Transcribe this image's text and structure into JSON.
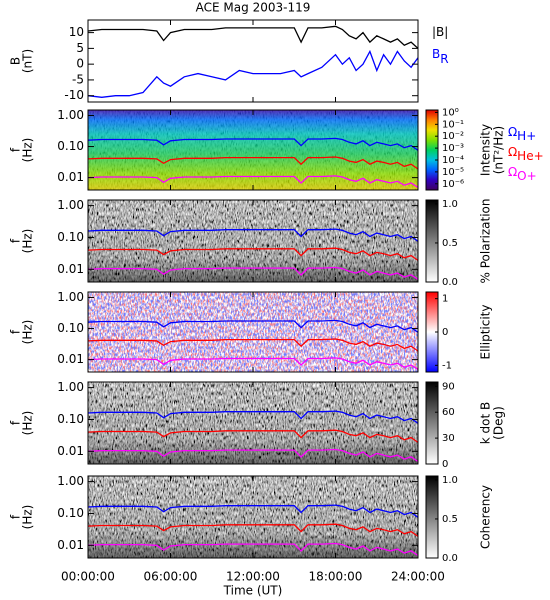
{
  "time_axis": {
    "label": "Time (UT)",
    "lim": [
      0,
      24
    ],
    "ticks": [
      {
        "value": 0,
        "label": "00:00:00"
      },
      {
        "value": 6,
        "label": "06:00:00"
      },
      {
        "value": 12,
        "label": "12:00:00"
      },
      {
        "value": 18,
        "label": "18:00:00"
      },
      {
        "value": 24,
        "label": "24:00:00"
      }
    ]
  },
  "cyclotron": {
    "series": [
      {
        "name": "Ω",
        "subscript": "H+",
        "color": "#0000ff",
        "values": [
          0.16,
          0.168,
          0.168,
          0.168,
          0.168,
          0.16,
          0.114,
          0.153,
          0.168,
          0.168,
          0.168,
          0.175,
          0.175,
          0.175,
          0.175,
          0.175,
          0.175,
          0.107,
          0.175,
          0.175,
          0.183,
          0.168,
          0.137,
          0.122,
          0.153,
          0.107,
          0.137,
          0.122,
          0.107,
          0.122,
          0.092,
          0.107,
          0.076
        ]
      },
      {
        "name": "Ω",
        "subscript": "He+",
        "color": "#ff0000",
        "values": [
          0.04,
          0.042,
          0.042,
          0.042,
          0.042,
          0.04,
          0.029,
          0.038,
          0.042,
          0.042,
          0.042,
          0.044,
          0.044,
          0.044,
          0.044,
          0.044,
          0.044,
          0.027,
          0.044,
          0.044,
          0.046,
          0.042,
          0.034,
          0.031,
          0.038,
          0.027,
          0.034,
          0.031,
          0.027,
          0.031,
          0.023,
          0.027,
          0.019
        ]
      },
      {
        "name": "Ω",
        "subscript": "O+",
        "color": "#ff00ff",
        "values": [
          0.01,
          0.0105,
          0.0105,
          0.0105,
          0.0105,
          0.01,
          0.0071,
          0.0095,
          0.0105,
          0.0105,
          0.0105,
          0.0109,
          0.0109,
          0.0109,
          0.0109,
          0.0109,
          0.0109,
          0.0067,
          0.0109,
          0.0109,
          0.0114,
          0.0105,
          0.0086,
          0.0076,
          0.0095,
          0.0067,
          0.0086,
          0.0076,
          0.0067,
          0.0076,
          0.0057,
          0.0067,
          0.0048
        ]
      }
    ]
  },
  "chart_data": [
    {
      "type": "line",
      "title": "ACE Mag 2003-119",
      "ylabel": [
        "B",
        "(nT)"
      ],
      "ylim": [
        -12,
        14
      ],
      "yticks": [
        -10,
        -5,
        0,
        5,
        10
      ],
      "x": [
        0,
        1,
        2,
        3,
        4,
        5,
        5.5,
        6,
        7,
        8,
        9,
        10,
        11,
        12,
        13,
        14,
        15,
        15.5,
        16,
        17,
        18,
        18.5,
        19,
        19.5,
        20,
        20.5,
        21,
        21.5,
        22,
        22.5,
        23,
        23.5,
        24
      ],
      "series": [
        {
          "name": "|B|",
          "color": "#000000",
          "values": [
            10.5,
            11,
            11,
            11,
            11,
            10.5,
            7.5,
            10,
            11,
            11,
            11,
            11.5,
            11.5,
            11.5,
            11.5,
            11.5,
            11.5,
            7,
            11.5,
            11.5,
            12,
            11,
            9,
            8,
            10,
            7,
            9,
            8,
            7,
            8,
            6,
            7,
            5
          ]
        },
        {
          "name": "B",
          "subscript": "R",
          "color": "#0000ff",
          "values": [
            -10,
            -10.5,
            -10,
            -10,
            -9,
            -4,
            -6,
            -7,
            -4,
            -3,
            -4,
            -5,
            -2,
            -3,
            -3,
            -3,
            -2,
            -4,
            -3,
            -1,
            3,
            0,
            2,
            -2,
            0,
            4,
            -2,
            3,
            0,
            4,
            1,
            -1,
            2
          ]
        }
      ]
    },
    {
      "type": "spectrogram",
      "ylabel": [
        "f",
        "(Hz)"
      ],
      "log": true,
      "ylim": [
        0.004,
        1.5
      ],
      "yticks": [
        {
          "value": 1,
          "label": "1.00"
        },
        {
          "value": 0.1,
          "label": "0.10"
        },
        0.01
      ],
      "colorbar": {
        "title": [
          "Intensity",
          "(nT²/Hz)"
        ],
        "log": true,
        "lim": [
          3e-07,
          1.6
        ],
        "ticks": [
          {
            "value": 1,
            "label": "10⁰"
          },
          {
            "value": 0.1,
            "label": "10⁻¹"
          },
          {
            "value": 0.01,
            "label": "10⁻²"
          },
          {
            "value": 0.001,
            "label": "10⁻³"
          },
          {
            "value": 0.0001,
            "label": "10⁻⁴"
          },
          {
            "value": 1e-05,
            "label": "10⁻⁵"
          },
          {
            "value": 1e-06,
            "label": "10⁻⁶"
          }
        ],
        "colors": [
          "#400060",
          "#3000c0",
          "#0060ff",
          "#00c0e0",
          "#00d060",
          "#80e000",
          "#f0e000",
          "#ff8000",
          "#e00000"
        ]
      }
    },
    {
      "type": "spectrogram",
      "ylabel": [
        "f",
        "(Hz)"
      ],
      "log": true,
      "ylim": [
        0.004,
        1.5
      ],
      "yticks": [
        {
          "value": 1,
          "label": "1.00"
        },
        {
          "value": 0.1,
          "label": "0.10"
        },
        0.01
      ],
      "colorbar": {
        "title": [
          "% Polarization"
        ],
        "log": false,
        "lim": [
          0,
          1.05
        ],
        "ticks": [
          {
            "value": 0,
            "label": "0.0"
          },
          0.5,
          {
            "value": 1,
            "label": "1.0"
          }
        ],
        "colors": [
          "#ffffff",
          "#000000"
        ]
      }
    },
    {
      "type": "spectrogram",
      "ylabel": [
        "f",
        "(Hz)"
      ],
      "log": true,
      "ylim": [
        0.004,
        1.5
      ],
      "yticks": [
        {
          "value": 1,
          "label": "1.00"
        },
        {
          "value": 0.1,
          "label": "0.10"
        },
        0.01
      ],
      "colorbar": {
        "title": [
          "Ellipticity"
        ],
        "log": false,
        "lim": [
          -1.2,
          1.2
        ],
        "ticks": [
          -1,
          0,
          1
        ],
        "colors": [
          "#0000ff",
          "#ffffff",
          "#ff0000"
        ]
      }
    },
    {
      "type": "spectrogram",
      "ylabel": [
        "f",
        "(Hz)"
      ],
      "log": true,
      "ylim": [
        0.004,
        1.5
      ],
      "yticks": [
        {
          "value": 1,
          "label": "1.00"
        },
        {
          "value": 0.1,
          "label": "0.10"
        },
        0.01
      ],
      "colorbar": {
        "title": [
          "k dot B",
          "(Deg)"
        ],
        "log": false,
        "lim": [
          0,
          95
        ],
        "ticks": [
          0,
          30,
          60,
          90
        ],
        "colors": [
          "#ffffff",
          "#000000"
        ]
      }
    },
    {
      "type": "spectrogram",
      "ylabel": [
        "f",
        "(Hz)"
      ],
      "log": true,
      "ylim": [
        0.004,
        1.5
      ],
      "yticks": [
        {
          "value": 1,
          "label": "1.00"
        },
        {
          "value": 0.1,
          "label": "0.10"
        },
        0.01
      ],
      "colorbar": {
        "title": [
          "Coherency"
        ],
        "log": false,
        "lim": [
          0,
          1.05
        ],
        "ticks": [
          {
            "value": 0,
            "label": "0.0"
          },
          0.5,
          {
            "value": 1,
            "label": "1.0"
          }
        ],
        "colors": [
          "#ffffff",
          "#000000"
        ]
      }
    }
  ]
}
